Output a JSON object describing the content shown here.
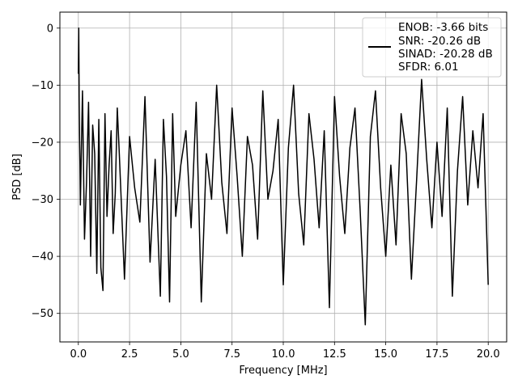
{
  "chart_data": {
    "type": "line",
    "xlabel": "Frequency [MHz]",
    "ylabel": "PSD [dB]",
    "xlim": [
      -0.9,
      20.9
    ],
    "ylim": [
      -55,
      2.8
    ],
    "xticks": [
      0.0,
      2.5,
      5.0,
      7.5,
      10.0,
      12.5,
      15.0,
      17.5,
      20.0
    ],
    "xtick_labels": [
      "0.0",
      "2.5",
      "5.0",
      "7.5",
      "10.0",
      "12.5",
      "15.0",
      "17.5",
      "20.0"
    ],
    "yticks": [
      0,
      -10,
      -20,
      -30,
      -40,
      -50
    ],
    "ytick_labels": [
      "0",
      "−10",
      "−20",
      "−30",
      "−40",
      "−50"
    ],
    "grid": true,
    "legend_position": "top-right",
    "line_color": "#000000",
    "legend_entries": [
      "ENOB: -3.66 bits",
      "SNR: -20.26 dB",
      "SINAD: -20.28 dB",
      "SFDR: 6.01"
    ],
    "series": [
      {
        "x": [
          0.0,
          0.02,
          0.04,
          0.06,
          0.08,
          0.1,
          0.2,
          0.3,
          0.4,
          0.5,
          0.6,
          0.7,
          0.8,
          0.9,
          1.0,
          1.1,
          1.2,
          1.3,
          1.4,
          1.5,
          1.6,
          1.7,
          1.8,
          1.9,
          2.0,
          2.25,
          2.5,
          2.75,
          3.0,
          3.25,
          3.5,
          3.75,
          4.0,
          4.15,
          4.3,
          4.45,
          4.6,
          4.75,
          5.0,
          5.25,
          5.5,
          5.75,
          6.0,
          6.25,
          6.5,
          6.75,
          7.0,
          7.25,
          7.5,
          7.75,
          8.0,
          8.25,
          8.5,
          8.75,
          9.0,
          9.25,
          9.5,
          9.75,
          10.0,
          10.25,
          10.5,
          10.75,
          11.0,
          11.25,
          11.5,
          11.75,
          12.0,
          12.25,
          12.5,
          12.75,
          13.0,
          13.25,
          13.5,
          13.75,
          14.0,
          14.25,
          14.5,
          14.75,
          15.0,
          15.25,
          15.5,
          15.75,
          16.0,
          16.25,
          16.5,
          16.75,
          17.0,
          17.25,
          17.5,
          17.75,
          18.0,
          18.25,
          18.5,
          18.75,
          19.0,
          19.25,
          19.5,
          19.75,
          20.0
        ],
        "y": [
          -8,
          0,
          -12,
          -19,
          -24,
          -31,
          -11,
          -37,
          -27,
          -13,
          -40,
          -17,
          -22,
          -43,
          -16,
          -42,
          -46,
          -15,
          -33,
          -24,
          -18,
          -36,
          -29,
          -14,
          -22,
          -44,
          -19,
          -28,
          -34,
          -12,
          -41,
          -23,
          -47,
          -16,
          -26,
          -48,
          -15,
          -33,
          -24,
          -18,
          -35,
          -13,
          -48,
          -22,
          -30,
          -10,
          -27,
          -36,
          -14,
          -26,
          -40,
          -19,
          -24,
          -37,
          -11,
          -30,
          -25,
          -16,
          -45,
          -21,
          -10,
          -29,
          -38,
          -15,
          -23,
          -35,
          -18,
          -49,
          -12,
          -26,
          -36,
          -21,
          -14,
          -32,
          -52,
          -19,
          -11,
          -28,
          -40,
          -24,
          -38,
          -15,
          -22,
          -44,
          -27,
          -9,
          -23,
          -35,
          -20,
          -33,
          -14,
          -47,
          -25,
          -12,
          -31,
          -18,
          -28,
          -15,
          -45
        ]
      }
    ]
  }
}
